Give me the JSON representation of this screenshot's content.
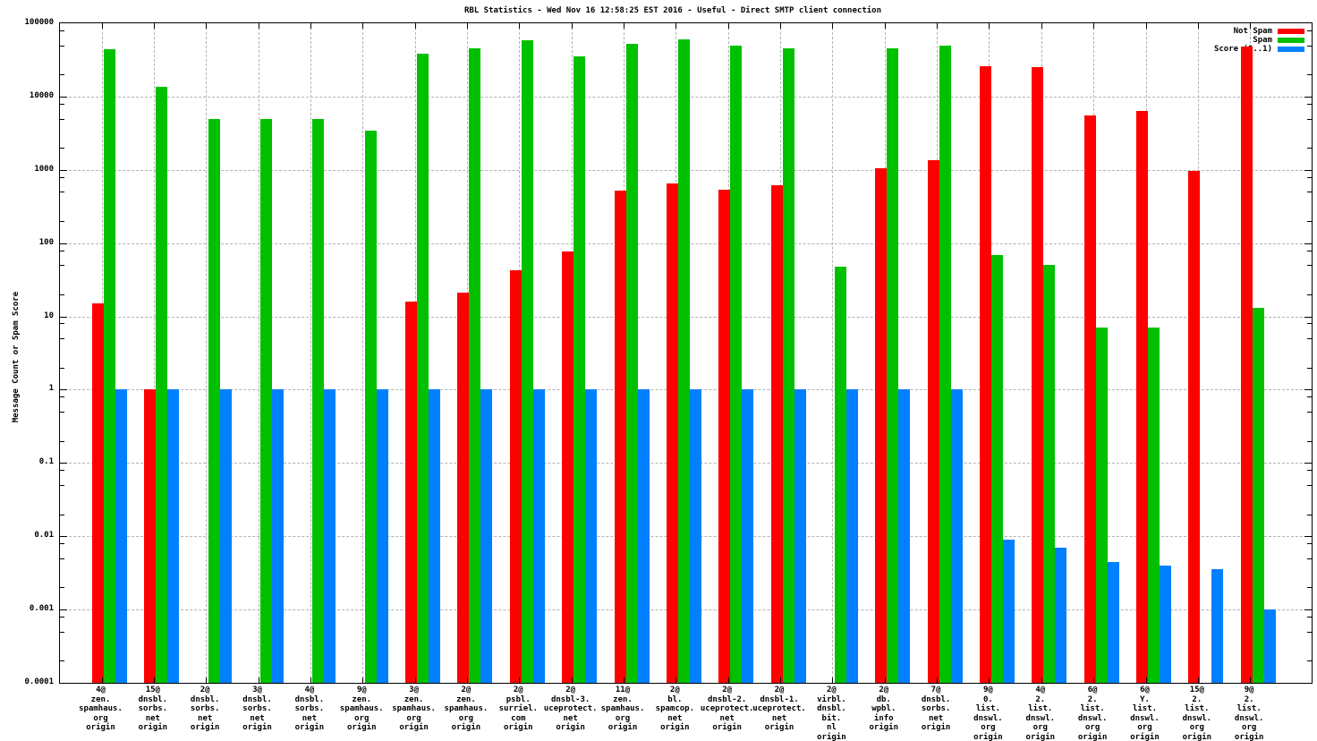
{
  "title": "RBL Statistics - Wed Nov 16 12:58:25 EST 2016 - Useful - Direct SMTP client connection",
  "y_axis": {
    "label": "Message Count or Spam Score",
    "ticks": [
      "100000",
      "10000",
      "1000",
      "100",
      "10",
      "1",
      "0.1",
      "0.01",
      "0.001",
      "0.0001"
    ]
  },
  "legend": [
    {
      "label": "Not Spam",
      "color": "#ff0000"
    },
    {
      "label": "Spam",
      "color": "#00c000"
    },
    {
      "label": "Score (0..1)",
      "color": "#0080ff"
    }
  ],
  "colors": {
    "not_spam": "#ff0000",
    "spam": "#00c000",
    "score": "#0080ff",
    "grid": "#b3b3b3",
    "axis": "#000000",
    "background": "#ffffff"
  },
  "chart_data": {
    "type": "bar",
    "scale_y": "log",
    "ylim": [
      0.0001,
      100000
    ],
    "grid": true,
    "legend_position": "top-right",
    "title": "RBL Statistics - Wed Nov 16 12:58:25 EST 2016 - Useful - Direct SMTP client connection",
    "ylabel": "Message Count or Spam Score",
    "xlabel": "",
    "categories": [
      [
        "4@",
        "zen.",
        "spamhaus.",
        "org",
        "origin"
      ],
      [
        "15@",
        "dnsbl.",
        "sorbs.",
        "net",
        "origin"
      ],
      [
        "2@",
        "dnsbl.",
        "sorbs.",
        "net",
        "origin"
      ],
      [
        "3@",
        "dnsbl.",
        "sorbs.",
        "net",
        "origin"
      ],
      [
        "4@",
        "dnsbl.",
        "sorbs.",
        "net",
        "origin"
      ],
      [
        "9@",
        "zen.",
        "spamhaus.",
        "org",
        "origin"
      ],
      [
        "3@",
        "zen.",
        "spamhaus.",
        "org",
        "origin"
      ],
      [
        "2@",
        "zen.",
        "spamhaus.",
        "org",
        "origin"
      ],
      [
        "2@",
        "psbl.",
        "surriel.",
        "com",
        "origin"
      ],
      [
        "2@",
        "dnsbl-3.",
        "uceprotect.",
        "net",
        "origin"
      ],
      [
        "11@",
        "zen.",
        "spamhaus.",
        "org",
        "origin"
      ],
      [
        "2@",
        "bl.",
        "spamcop.",
        "net",
        "origin"
      ],
      [
        "2@",
        "dnsbl-2.",
        "uceprotect.",
        "net",
        "origin"
      ],
      [
        "2@",
        "dnsbl-1.",
        "uceprotect.",
        "net",
        "origin"
      ],
      [
        "2@",
        "virbl.",
        "dnsbl.",
        "bit.",
        "nl",
        "origin"
      ],
      [
        "2@",
        "db.",
        "wpbl.",
        "info",
        "origin"
      ],
      [
        "7@",
        "dnsbl.",
        "sorbs.",
        "net",
        "origin"
      ],
      [
        "9@",
        "0.",
        "list.",
        "dnswl.",
        "org",
        "origin"
      ],
      [
        "4@",
        "2.",
        "list.",
        "dnswl.",
        "org",
        "origin"
      ],
      [
        "6@",
        "2.",
        "list.",
        "dnswl.",
        "org",
        "origin"
      ],
      [
        "6@",
        "Y.",
        "list.",
        "dnswl.",
        "org",
        "origin"
      ],
      [
        "15@",
        "2.",
        "list.",
        "dnswl.",
        "org",
        "origin"
      ],
      [
        "9@",
        "2.",
        "list.",
        "dnswl.",
        "org",
        "origin"
      ]
    ],
    "series": [
      {
        "name": "Not Spam",
        "color": "#ff0000",
        "values": [
          15,
          1,
          0,
          0,
          0,
          0,
          16,
          21,
          43,
          78,
          520,
          650,
          540,
          620,
          0,
          1050,
          1350,
          26000,
          25000,
          5500,
          6400,
          970,
          48000
        ]
      },
      {
        "name": "Spam",
        "color": "#00c000",
        "values": [
          44000,
          13500,
          5000,
          5000,
          5000,
          3400,
          38000,
          45000,
          58000,
          35000,
          53000,
          60000,
          49000,
          45000,
          48,
          45000,
          50000,
          68,
          50,
          7,
          7,
          0,
          13
        ]
      },
      {
        "name": "Score (0..1)",
        "color": "#0080ff",
        "values": [
          1,
          1,
          1,
          1,
          1,
          1,
          1,
          1,
          1,
          1,
          1,
          1,
          1,
          1,
          1,
          1,
          1,
          0.009,
          0.007,
          0.0045,
          0.004,
          0.0036,
          0.001
        ]
      }
    ]
  }
}
